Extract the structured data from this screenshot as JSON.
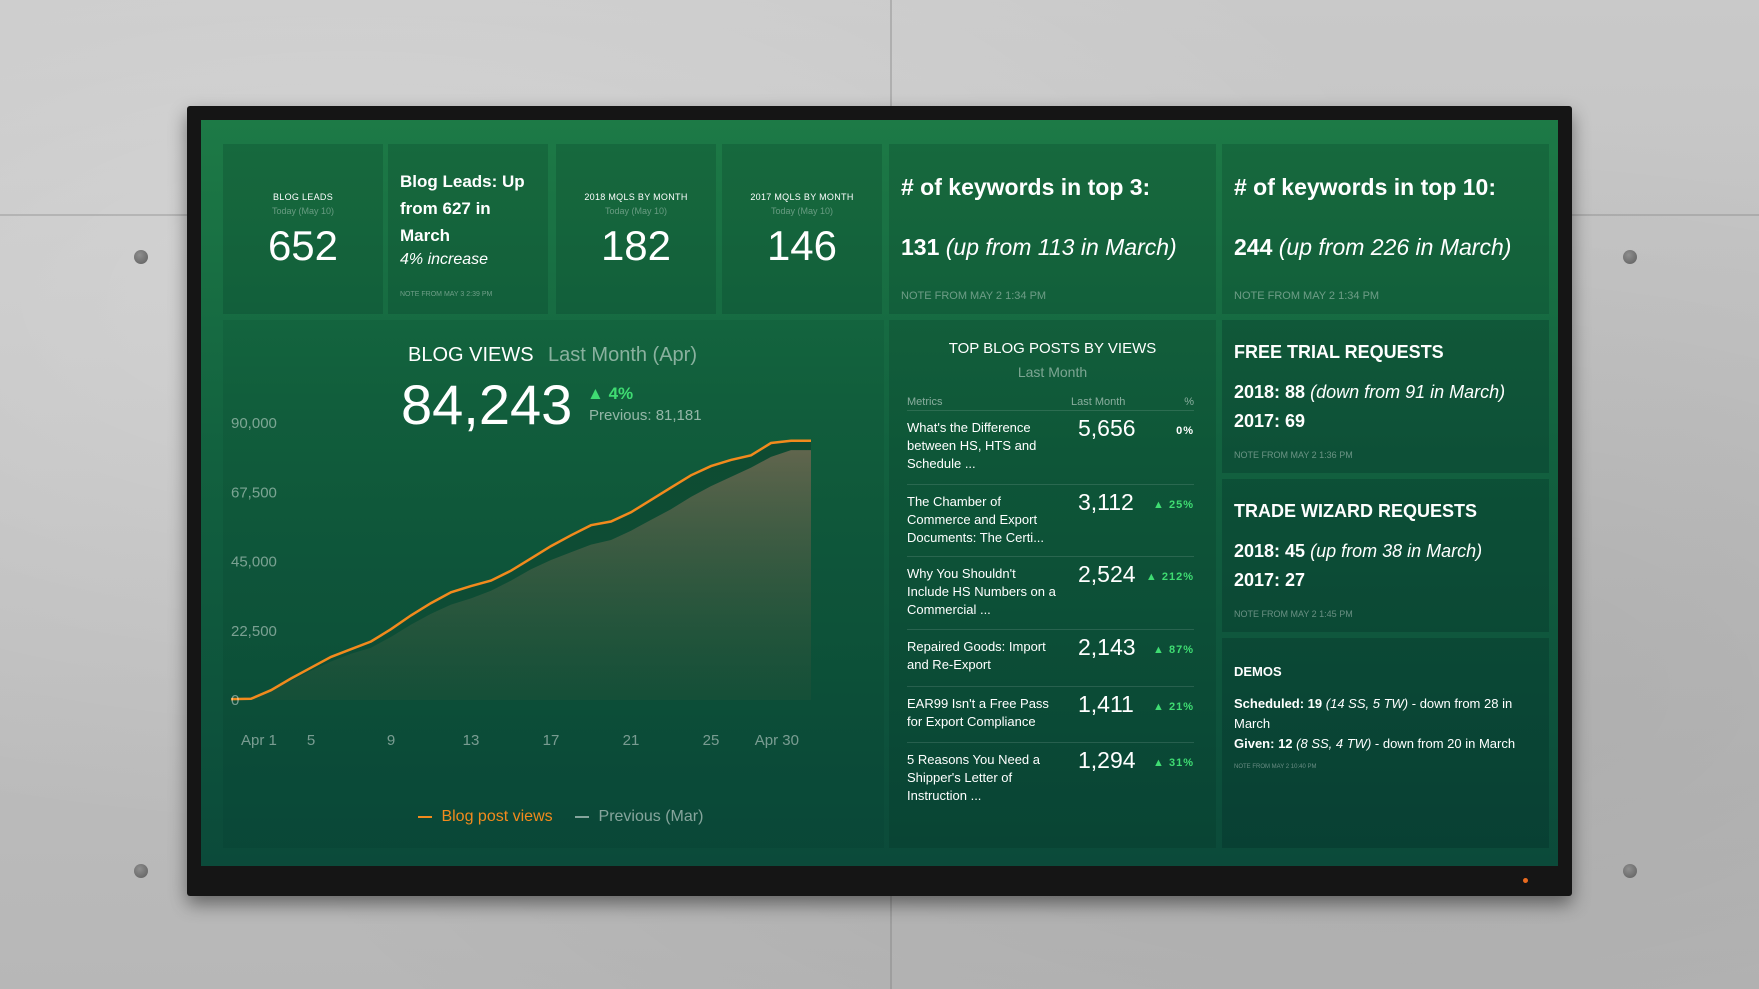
{
  "kpi": {
    "blog_leads": {
      "label": "BLOG LEADS",
      "sub": "Today (May 10)",
      "value": "652"
    },
    "blog_leads_note": {
      "title": "Blog Leads: Up from 627 in March",
      "sub": "4% increase",
      "note": "NOTE FROM MAY 3 2:39 PM"
    },
    "mqls_2018": {
      "label": "2018 MQLS BY MONTH",
      "sub": "Today (May 10)",
      "value": "182"
    },
    "mqls_2017": {
      "label": "2017 MQLS BY MONTH",
      "sub": "Today (May 10)",
      "value": "146"
    }
  },
  "keywords_top3": {
    "title": "# of keywords in top 3:",
    "value": "131",
    "detail": "(up from 113 in March)",
    "note": "NOTE FROM MAY 2 1:34 PM"
  },
  "keywords_top10": {
    "title": "# of keywords in top 10:",
    "value": "244",
    "detail": "(up from 226 in March)",
    "note": "NOTE FROM MAY 2 1:34 PM"
  },
  "blog_views": {
    "title": "BLOG VIEWS",
    "period": "Last Month (Apr)",
    "value": "84,243",
    "change": "4%",
    "previous": "Previous: 81,181",
    "legend_current": "Blog post views",
    "legend_previous": "Previous (Mar)"
  },
  "chart_data": {
    "type": "area",
    "ylim": [
      0,
      90000
    ],
    "yticks": [
      "90,000",
      "67,500",
      "45,000",
      "22,500",
      "0"
    ],
    "ytick_values": [
      90000,
      67500,
      45000,
      22500,
      0
    ],
    "xticks": [
      "Apr 1",
      "5",
      "9",
      "13",
      "17",
      "21",
      "25",
      "Apr 30"
    ],
    "xtick_days": [
      1,
      5,
      9,
      13,
      17,
      21,
      25,
      30
    ],
    "x": [
      1,
      2,
      3,
      4,
      5,
      6,
      7,
      8,
      9,
      10,
      11,
      12,
      13,
      14,
      15,
      16,
      17,
      18,
      19,
      20,
      21,
      22,
      23,
      24,
      25,
      26,
      27,
      28,
      29,
      30
    ],
    "series": [
      {
        "name": "Blog post views",
        "color": "#f28a1d",
        "values": [
          300,
          400,
          3200,
          7000,
          10500,
          14000,
          16500,
          19000,
          23000,
          27500,
          31500,
          35000,
          37000,
          38800,
          42000,
          46000,
          50000,
          53500,
          56800,
          58000,
          61000,
          65000,
          69000,
          73000,
          76000,
          78000,
          79500,
          83500,
          84243,
          84243
        ]
      },
      {
        "name": "Previous (Mar)",
        "color": "#7a7a5e",
        "values": [
          200,
          300,
          2800,
          6200,
          9500,
          12500,
          15000,
          17000,
          20500,
          24500,
          28000,
          31000,
          33000,
          35500,
          38800,
          42500,
          45500,
          48000,
          50500,
          52000,
          55000,
          58500,
          62000,
          66000,
          69500,
          72500,
          75500,
          79000,
          81181,
          81181
        ]
      }
    ]
  },
  "top_posts": {
    "title": "TOP BLOG POSTS BY VIEWS",
    "sub": "Last Month",
    "col_metrics": "Metrics",
    "col_last": "Last Month",
    "col_pct": "%",
    "rows": [
      {
        "title": "What's the Difference between HS, HTS and Schedule ...",
        "value": "5,656",
        "pct": "0%"
      },
      {
        "title": "The Chamber of Commerce and Export Documents: The Certi...",
        "value": "3,112",
        "pct": "▲ 25%"
      },
      {
        "title": "Why You Shouldn't Include HS Numbers on a Commercial ...",
        "value": "2,524",
        "pct": "▲ 212%"
      },
      {
        "title": "Repaired Goods: Import and Re-Export",
        "value": "2,143",
        "pct": "▲ 87%"
      },
      {
        "title": "EAR99 Isn't a Free Pass for Export Compliance",
        "value": "1,411",
        "pct": "▲ 21%"
      },
      {
        "title": "5 Reasons You Need a Shipper's Letter of Instruction ...",
        "value": "1,294",
        "pct": "▲ 31%"
      }
    ]
  },
  "free_trial": {
    "title": "FREE TRIAL REQUESTS",
    "line1_bold": "2018: 88",
    "line1_rest": "(down from 91 in March)",
    "line2_bold": "2017: 69",
    "note": "NOTE FROM MAY 2 1:36 PM"
  },
  "trade_wizard": {
    "title": "TRADE WIZARD REQUESTS",
    "line1_bold": "2018: 45",
    "line1_rest": "(up from 38 in March)",
    "line2_bold": "2017: 27",
    "note": "NOTE FROM MAY 2 1:45 PM"
  },
  "demos": {
    "title": "DEMOS",
    "scheduled_bold": "Scheduled: 19",
    "scheduled_italic": "(14 SS, 5 TW)",
    "scheduled_rest": "- down from 28 in March",
    "given_bold": "Given: 12",
    "given_italic": "(8 SS, 4 TW)",
    "given_rest": "- down from 20 in March",
    "note": "NOTE FROM MAY 2 10:40 PM"
  },
  "colors": {
    "accent_up": "#3fdc72",
    "line": "#f28a1d",
    "screen_top": "#1d7a46",
    "screen_bottom": "#0b4a3a"
  }
}
